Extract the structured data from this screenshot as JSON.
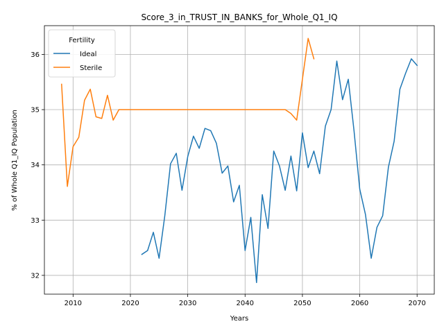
{
  "chart_data": {
    "type": "line",
    "title": "Score_3_in_TRUST_IN_BANKS_for_Whole_Q1_IQ",
    "xlabel": "Years",
    "ylabel": "% of Whole Q1_IQ Population",
    "xlim": [
      2005,
      2073
    ],
    "ylim": [
      31.66,
      36.52
    ],
    "xticks": [
      2010,
      2020,
      2030,
      2040,
      2050,
      2060,
      2070
    ],
    "yticks": [
      32,
      33,
      34,
      35,
      36
    ],
    "grid": true,
    "legend": {
      "title": "Fertility",
      "placement": "top-left"
    },
    "series": [
      {
        "name": "Ideal",
        "color": "#1f77b4",
        "x": [
          2022,
          2023,
          2024,
          2025,
          2026,
          2027,
          2028,
          2029,
          2030,
          2031,
          2032,
          2033,
          2034,
          2035,
          2036,
          2037,
          2038,
          2039,
          2040,
          2041,
          2042,
          2043,
          2044,
          2045,
          2046,
          2047,
          2048,
          2049,
          2050,
          2051,
          2052,
          2053,
          2054,
          2055,
          2056,
          2057,
          2058,
          2059,
          2060,
          2061,
          2062,
          2063,
          2064,
          2065,
          2066,
          2067,
          2068,
          2069,
          2070
        ],
        "y": [
          32.38,
          32.45,
          32.78,
          32.31,
          33.08,
          34.02,
          34.21,
          33.54,
          34.15,
          34.52,
          34.3,
          34.66,
          34.62,
          34.39,
          33.85,
          33.98,
          33.33,
          33.63,
          32.45,
          33.05,
          31.87,
          33.46,
          32.85,
          34.25,
          33.98,
          33.54,
          34.16,
          33.53,
          34.58,
          33.95,
          34.25,
          33.84,
          34.7,
          35.0,
          35.88,
          35.18,
          35.55,
          34.62,
          33.56,
          33.1,
          32.31,
          32.87,
          33.08,
          33.96,
          34.43,
          35.37,
          35.66,
          35.92,
          35.8
        ]
      },
      {
        "name": "Sterile",
        "color": "#ff7f0e",
        "x": [
          2008,
          2009,
          2010,
          2011,
          2012,
          2013,
          2014,
          2015,
          2016,
          2017,
          2018,
          2019,
          2020,
          2021,
          2022,
          2023,
          2024,
          2025,
          2026,
          2027,
          2028,
          2029,
          2030,
          2031,
          2032,
          2033,
          2034,
          2035,
          2036,
          2037,
          2038,
          2039,
          2040,
          2041,
          2042,
          2043,
          2044,
          2045,
          2046,
          2047,
          2048,
          2049,
          2050,
          2051,
          2052
        ],
        "y": [
          35.46,
          33.61,
          34.33,
          34.5,
          35.17,
          35.37,
          34.87,
          34.84,
          35.26,
          34.81,
          35.0,
          35.0,
          35.0,
          35.0,
          35.0,
          35.0,
          35.0,
          35.0,
          35.0,
          35.0,
          35.0,
          35.0,
          35.0,
          35.0,
          35.0,
          35.0,
          35.0,
          35.0,
          35.0,
          35.0,
          35.0,
          35.0,
          35.0,
          35.0,
          35.0,
          35.0,
          35.0,
          35.0,
          35.0,
          35.0,
          34.93,
          34.81,
          35.55,
          36.29,
          35.92
        ]
      }
    ]
  }
}
